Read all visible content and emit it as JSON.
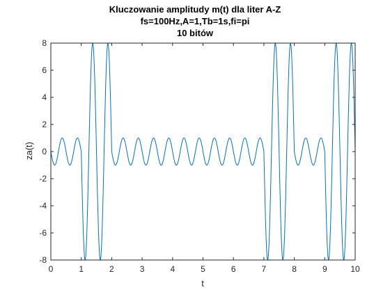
{
  "chart_data": {
    "type": "line",
    "title": [
      "Kluczowanie amplitudy m(t) dla liter A-Z",
      "fs=100Hz,A=1,Tb=1s,fi=pi",
      "10 bitów"
    ],
    "xlabel": "t",
    "ylabel": "za(t)",
    "xlim": [
      0,
      10
    ],
    "ylim": [
      -8,
      8
    ],
    "xticks": [
      "0",
      "1",
      "2",
      "3",
      "4",
      "5",
      "6",
      "7",
      "8",
      "9",
      "10"
    ],
    "yticks": [
      "-8",
      "-6",
      "-4",
      "-2",
      "0",
      "2",
      "4",
      "6",
      "8"
    ],
    "grid": false,
    "legend": "none",
    "line_color": "#0072BD",
    "signal": {
      "bits": [
        0,
        1,
        0,
        0,
        0,
        0,
        0,
        1,
        0,
        1
      ],
      "amplitudes": [
        1,
        8
      ],
      "carrier_frequency_hz": 2,
      "phase_rad": 3.14159,
      "samples_per_second": 100
    }
  }
}
